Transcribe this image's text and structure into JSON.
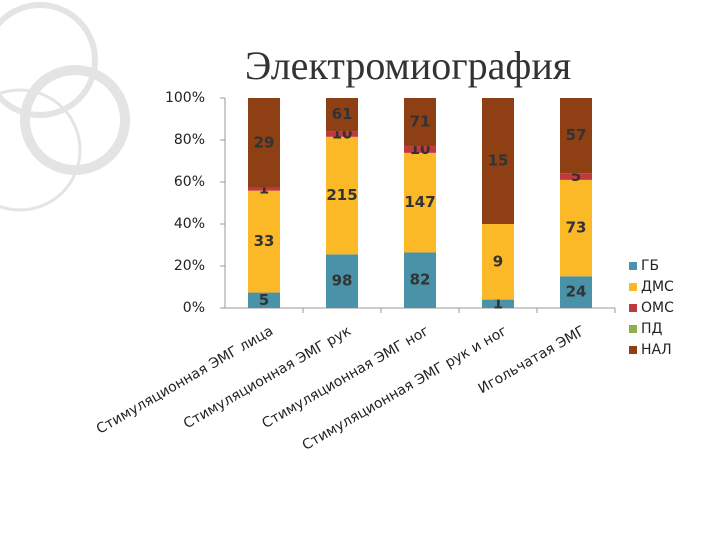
{
  "chart_data": {
    "type": "stacked-percent-bar",
    "title": "Электромиография",
    "categories": [
      "Стимуляционная ЭМГ лица",
      "Стимуляционная ЭМГ рук",
      "Стимуляционная ЭМГ ног",
      "Стимуляционная ЭМГ рук и ног",
      "Игольчатая ЭМГ"
    ],
    "series": [
      {
        "name": "ГБ",
        "color": "#4a92a8",
        "values": [
          5,
          98,
          82,
          1,
          24
        ]
      },
      {
        "name": "ДМС",
        "color": "#fbb928",
        "values": [
          33,
          215,
          147,
          9,
          73
        ]
      },
      {
        "name": "ОМС",
        "color": "#c0393f",
        "values": [
          1,
          10,
          10,
          0,
          5
        ]
      },
      {
        "name": "ПД",
        "color": "#8fb04a",
        "values": [
          0,
          0,
          0,
          0,
          0
        ]
      },
      {
        "name": "НАЛ",
        "color": "#8e3f14",
        "values": [
          29,
          61,
          71,
          15,
          57
        ]
      }
    ],
    "ylim": [
      0,
      100
    ],
    "yticks": [
      {
        "value": 0,
        "label": "0%"
      },
      {
        "value": 20,
        "label": "20%"
      },
      {
        "value": 40,
        "label": "40%"
      },
      {
        "value": 60,
        "label": "60%"
      },
      {
        "value": 80,
        "label": "80%"
      },
      {
        "value": 100,
        "label": "100%"
      }
    ],
    "grid": false,
    "legend": "right"
  }
}
